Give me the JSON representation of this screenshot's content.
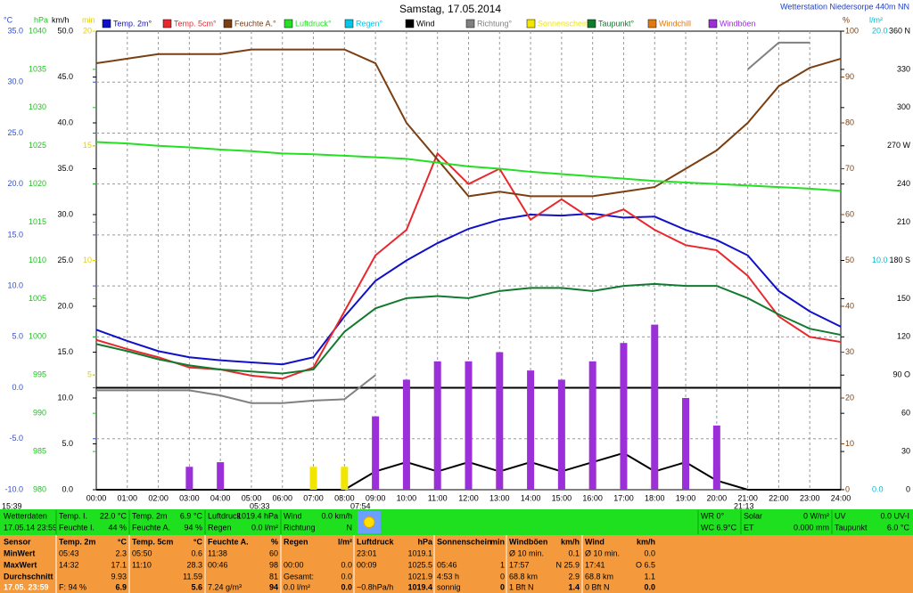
{
  "chart_data": {
    "type": "line",
    "title": "Samstag, 17.05.2014",
    "subtitle": "Wetterstation Niedersorpe 440m NN",
    "categories": [
      "00:00",
      "01:00",
      "02:00",
      "03:00",
      "04:00",
      "05:00",
      "06:00",
      "07:00",
      "08:00",
      "09:00",
      "10:00",
      "11:00",
      "12:00",
      "13:00",
      "14:00",
      "15:00",
      "16:00",
      "17:00",
      "18:00",
      "19:00",
      "20:00",
      "21:00",
      "22:00",
      "23:00",
      "24:00"
    ],
    "grid": true,
    "axes": [
      {
        "unit": "°C",
        "color": "#3050d0",
        "ylim": [
          -10,
          35
        ],
        "yticks": [
          {
            "value": 35,
            "label": "35.0"
          },
          {
            "value": 30,
            "label": "30.0"
          },
          {
            "value": 25,
            "label": "25.0"
          },
          {
            "value": 20,
            "label": "20.0"
          },
          {
            "value": 15,
            "label": "15.0"
          },
          {
            "value": 10,
            "label": "10.0"
          },
          {
            "value": 5,
            "label": "5.0"
          },
          {
            "value": 0,
            "label": "0.0"
          },
          {
            "value": -5,
            "label": "-5.0"
          },
          {
            "value": -10,
            "label": "-10.0"
          }
        ]
      },
      {
        "unit": "hPa",
        "color": "#22c022",
        "ylim": [
          980,
          1040
        ],
        "yticks": [
          1040,
          1035,
          1030,
          1025,
          1020,
          1015,
          1010,
          1005,
          1000,
          995,
          990,
          985,
          980
        ]
      },
      {
        "unit": "km/h",
        "color": "#000000",
        "ylim": [
          0,
          50
        ],
        "yticks": [
          {
            "value": 50,
            "label": "50.0"
          },
          {
            "value": 45,
            "label": "45.0"
          },
          {
            "value": 40,
            "label": "40.0"
          },
          {
            "value": 35,
            "label": "35.0"
          },
          {
            "value": 30,
            "label": "30.0"
          },
          {
            "value": 25,
            "label": "25.0"
          },
          {
            "value": 20,
            "label": "20.0"
          },
          {
            "value": 15,
            "label": "15.0"
          },
          {
            "value": 10,
            "label": "10.0"
          },
          {
            "value": 5,
            "label": "5.0"
          },
          {
            "value": 0,
            "label": "0.0"
          }
        ]
      },
      {
        "unit": "min",
        "color": "#e6d000",
        "ylim": [
          0,
          20
        ],
        "yticks": [
          20,
          15,
          10,
          5
        ]
      },
      {
        "unit": "%",
        "color": "#7b3f12",
        "ylim": [
          0,
          100
        ],
        "yticks": [
          100,
          90,
          80,
          70,
          60,
          50,
          40,
          30,
          20,
          10,
          0
        ]
      },
      {
        "unit": "l/m²",
        "color": "#00bcd4",
        "ylim": [
          0,
          20
        ],
        "yticks": [
          {
            "value": 20,
            "label": "20.0"
          },
          {
            "value": 10,
            "label": "10.0"
          },
          {
            "value": 0,
            "label": "0.0"
          }
        ]
      },
      {
        "color": "#000000",
        "ylim": [
          0,
          360
        ],
        "yticks": [
          {
            "value": 360,
            "label": "360 N"
          },
          330,
          300,
          {
            "value": 270,
            "label": "270 W"
          },
          240,
          210,
          {
            "value": 180,
            "label": "180 S"
          },
          150,
          120,
          {
            "value": 90,
            "label": "90 O"
          },
          60,
          30,
          0
        ]
      }
    ],
    "series": [
      {
        "name": "Temp. 2m°",
        "color": "#1010c8",
        "axis": 0,
        "values": [
          5.7,
          4.6,
          3.6,
          3.0,
          2.7,
          2.5,
          2.3,
          3.0,
          7.0,
          10.5,
          12.5,
          14.2,
          15.6,
          16.5,
          17.0,
          16.9,
          17.1,
          16.7,
          16.8,
          15.5,
          14.5,
          13.0,
          9.5,
          7.5,
          6.0
        ]
      },
      {
        "name": "Temp. 5cm°",
        "color": "#e8282d",
        "axis": 0,
        "values": [
          4.7,
          3.8,
          3.0,
          2.0,
          1.8,
          1.2,
          0.9,
          2.0,
          7.5,
          13.0,
          15.5,
          23.0,
          20.0,
          21.5,
          16.5,
          18.5,
          16.5,
          17.5,
          15.5,
          14.0,
          13.5,
          11.0,
          7.0,
          5.0,
          4.5
        ]
      },
      {
        "name": "Feuchte A.°",
        "color": "#7b3f12",
        "axis": 4,
        "values": [
          93,
          94,
          95,
          95,
          95,
          96,
          96,
          96,
          96,
          93,
          80,
          72,
          64,
          65,
          64,
          64,
          64,
          65,
          66,
          70,
          74,
          80,
          88,
          92,
          94
        ]
      },
      {
        "name": "Luftdruck°",
        "color": "#22e022",
        "axis": 1,
        "values": [
          1025.5,
          1025.3,
          1025.0,
          1024.8,
          1024.5,
          1024.3,
          1024.0,
          1023.9,
          1023.7,
          1023.5,
          1023.3,
          1022.8,
          1022.3,
          1022.0,
          1021.6,
          1021.3,
          1021.0,
          1020.7,
          1020.4,
          1020.2,
          1020.0,
          1019.8,
          1019.6,
          1019.4,
          1019.1
        ]
      },
      {
        "name": "Regen°",
        "color": "#00c8e6",
        "axis": 5
      },
      {
        "name": "Wind",
        "color": "#000000",
        "axis": 2,
        "values": [
          0,
          0,
          0,
          0,
          0,
          0,
          0,
          0,
          0,
          2,
          3,
          2,
          3,
          2,
          3,
          2,
          3,
          4,
          2,
          3,
          1,
          0,
          0,
          0,
          0
        ]
      },
      {
        "name": "Richtung°",
        "color": "#808080",
        "axis": 6,
        "values": [
          78,
          78,
          78,
          78,
          74,
          68,
          68,
          70,
          71,
          90,
          null,
          null,
          null,
          null,
          null,
          null,
          null,
          null,
          null,
          null,
          null,
          330,
          351,
          351,
          null
        ]
      },
      {
        "name": "Sonnenschein",
        "color": "#f2e600",
        "axis": 3,
        "style": "bar",
        "values": [
          0,
          0,
          0,
          0,
          0,
          0,
          0,
          1,
          1,
          1,
          1,
          0,
          1,
          1,
          1,
          1,
          1,
          1,
          1,
          0,
          1,
          0,
          0,
          0,
          0
        ]
      },
      {
        "name": "Taupunkt°",
        "color": "#127a2e",
        "axis": 0,
        "values": [
          4.3,
          3.6,
          2.8,
          2.2,
          1.8,
          1.6,
          1.4,
          1.8,
          5.5,
          7.8,
          8.8,
          9.0,
          8.8,
          9.5,
          9.8,
          9.8,
          9.5,
          10.0,
          10.2,
          10.0,
          10.0,
          8.8,
          7.2,
          5.8,
          5.2
        ]
      },
      {
        "name": "Windchill",
        "color": "#e07a10",
        "axis": 0
      },
      {
        "name": "Windböen",
        "color": "#9b30d9",
        "axis": 2,
        "style": "bar",
        "values": [
          0,
          0,
          0,
          2.5,
          3,
          0,
          0,
          0,
          0,
          8,
          12,
          14,
          14,
          15,
          13,
          12,
          14,
          16,
          18,
          10,
          7,
          0,
          0,
          0,
          0
        ]
      }
    ],
    "annotations": [
      "15:39",
      "05:33",
      "07:54",
      "21:13"
    ]
  },
  "status": {
    "columns": [
      [
        {
          "label": "Wetterdaten"
        },
        {
          "label": "17.05.14 23:59"
        }
      ],
      [
        {
          "label": "Temp. I.",
          "value": "22.0 °C"
        },
        {
          "label": "Feuchte I.",
          "value": "44 %"
        }
      ],
      [
        {
          "label": "Temp. 2m",
          "value": "6.9 °C"
        },
        {
          "label": "Feuchte A.",
          "value": "94 %"
        }
      ],
      [
        {
          "label": "Luftdruck",
          "value": "1019.4 hPa"
        },
        {
          "label": "Regen",
          "value": "0.0 l/m²"
        }
      ],
      [
        {
          "label": "Wind",
          "value": "0.0 km/h"
        },
        {
          "label": "Richtung",
          "value": "N"
        }
      ],
      [
        {
          "label": "WR 0°"
        },
        {
          "label": "WC 6.9°C"
        }
      ],
      [
        {
          "label": "Solar",
          "value": "0 W/m²"
        },
        {
          "label": "ET",
          "value": "0.000 mm"
        }
      ],
      [
        {
          "label": "UV",
          "value": "0.0 UV-I"
        },
        {
          "label": "Taupunkt",
          "value": "6.0 °C"
        }
      ]
    ]
  },
  "summary": {
    "row_labels": [
      "Sensor",
      "MinWert",
      "MaxWert",
      "Durchschnitt",
      "17.05. 23:59"
    ],
    "columns": [
      {
        "name": "Temp. 2m",
        "unit": "°C",
        "cells": [
          [
            "05:43",
            "2.3"
          ],
          [
            "14:32",
            "17.1"
          ],
          [
            null,
            "9.93"
          ],
          [
            "F: 94 %",
            "6.9"
          ]
        ]
      },
      {
        "name": "Temp. 5cm",
        "unit": "°C",
        "cells": [
          [
            "05:50",
            "0.6"
          ],
          [
            "11:10",
            "28.3"
          ],
          [
            null,
            "11.59"
          ],
          [
            null,
            "5.6"
          ]
        ]
      },
      {
        "name": "Feuchte A.",
        "unit": "%",
        "cells": [
          [
            "11:38",
            "60"
          ],
          [
            "00:46",
            "98"
          ],
          [
            null,
            "81"
          ],
          [
            "7.24 g/m³",
            "94"
          ]
        ]
      },
      {
        "name": "Regen",
        "unit": "l/m²",
        "cells": [
          null,
          [
            "00:00",
            "0.0"
          ],
          [
            "Gesamt:",
            "0.0"
          ],
          [
            "0.0 l/m²",
            "0.0"
          ]
        ]
      },
      {
        "name": "Luftdruck",
        "unit": "hPa",
        "cells": [
          [
            "23:01",
            "1019.1"
          ],
          [
            "00:09",
            "1025.5"
          ],
          [
            null,
            "1021.9"
          ],
          [
            "~0.8hPa/h",
            "1019.4"
          ]
        ]
      },
      {
        "name": "Sonnenschein",
        "unit": "min",
        "cells": [
          null,
          [
            "05:46",
            "1"
          ],
          [
            "4:53 h",
            "0"
          ],
          [
            "sonnig",
            "0"
          ]
        ]
      },
      {
        "name": "Windböen",
        "unit": "km/h",
        "cells": [
          [
            "Ø 10 min.",
            "0.1"
          ],
          [
            "17:57",
            "N 25.9"
          ],
          [
            "68.8 km",
            "2.9"
          ],
          [
            "1 Bft N",
            "1.4"
          ]
        ]
      },
      {
        "name": "Wind",
        "unit": "km/h",
        "cells": [
          [
            "Ø 10 min.",
            "0.0"
          ],
          [
            "17:41",
            "O 6.5"
          ],
          [
            "68.8 km",
            "1.1"
          ],
          [
            "0 Bft N",
            "0.0"
          ]
        ]
      }
    ]
  }
}
